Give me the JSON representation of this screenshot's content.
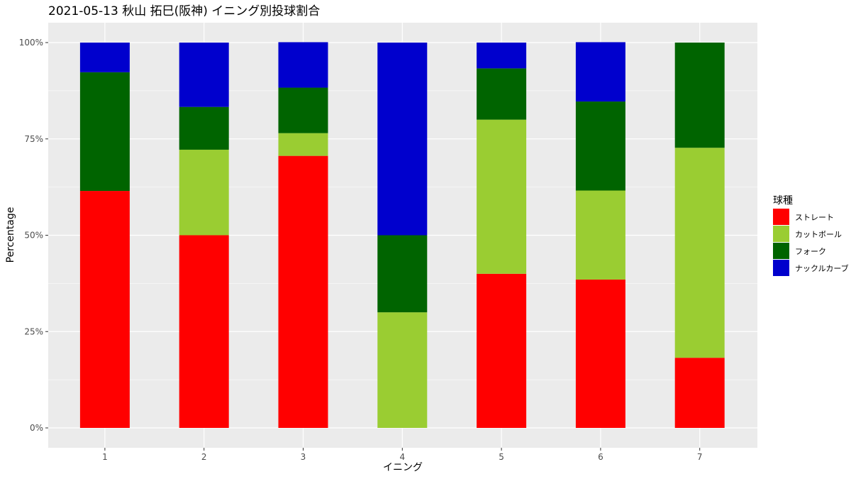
{
  "chart_data": {
    "type": "bar",
    "stacked": true,
    "normalized": true,
    "title": "2021-05-13 秋山 拓巳(阪神) イニング別投球割合",
    "xlabel": "イニング",
    "ylabel": "Percentage",
    "categories": [
      "1",
      "2",
      "3",
      "4",
      "5",
      "6",
      "7"
    ],
    "ylim": [
      0,
      1
    ],
    "y_ticks": [
      {
        "value": 0,
        "label": "0%"
      },
      {
        "value": 0.25,
        "label": "25%"
      },
      {
        "value": 0.5,
        "label": "50%"
      },
      {
        "value": 0.75,
        "label": "75%"
      },
      {
        "value": 1,
        "label": "100%"
      }
    ],
    "legend_title": "球種",
    "legend_position": "right",
    "grid": true,
    "series": [
      {
        "name": "ストレート",
        "color": "#ff0000",
        "values": [
          0.615,
          0.5,
          0.706,
          0.0,
          0.4,
          0.385,
          0.182
        ]
      },
      {
        "name": "カットボール",
        "color": "#9acd32",
        "values": [
          0.0,
          0.222,
          0.059,
          0.3,
          0.4,
          0.231,
          0.545
        ]
      },
      {
        "name": "フォーク",
        "color": "#006400",
        "values": [
          0.308,
          0.111,
          0.118,
          0.2,
          0.133,
          0.231,
          0.273
        ]
      },
      {
        "name": "ナックルカーブ",
        "color": "#0000cd",
        "values": [
          0.077,
          0.167,
          0.118,
          0.5,
          0.067,
          0.154,
          0.0
        ]
      }
    ],
    "colors": {
      "panel_background": "#ebebeb",
      "grid_line": "#ffffff"
    }
  }
}
